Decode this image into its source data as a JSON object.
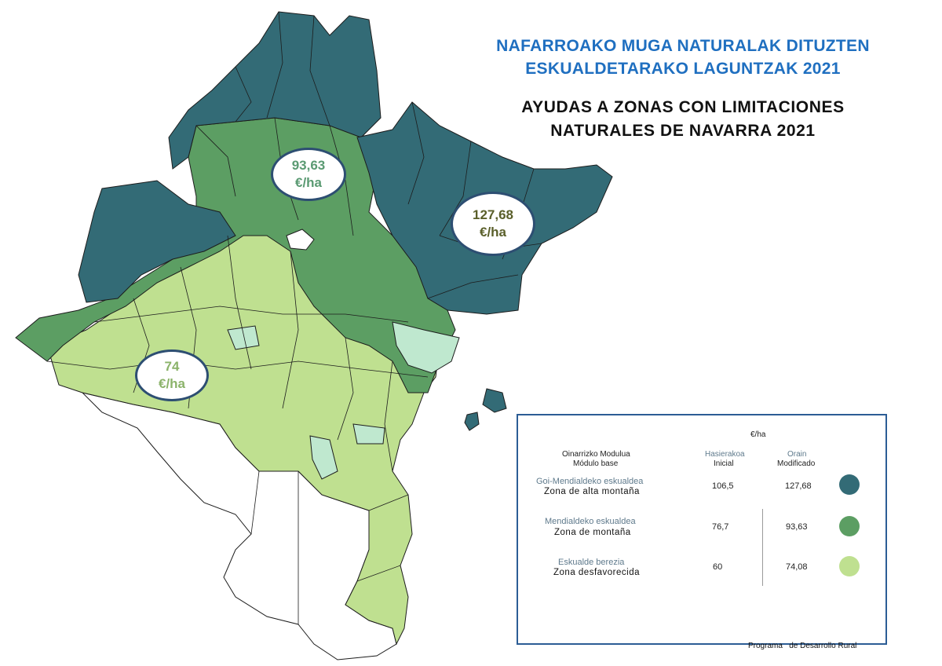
{
  "title": {
    "basque_line1": "NAFARROAKO MUGA NATURALAK DITUZTEN",
    "basque_line2": "ESKUALDETARAKO  LAGUNTZAK 2021",
    "spanish_line1": "AYUDAS A ZONAS CON LIMITACIONES",
    "spanish_line2": "NATURALES DE  NAVARRA  2021"
  },
  "bubbles": [
    {
      "value": "93,63",
      "unit": "€/ha",
      "color": "#5a9a72"
    },
    {
      "value": "127,68",
      "unit": "€/ha",
      "color": "#5a5f2a"
    },
    {
      "value": "74",
      "unit": "€/ha",
      "color": "#8bb36a"
    }
  ],
  "legend": {
    "unit_header": "€/ha",
    "module_header_eu": "Oinarrizko Modulua",
    "module_header_es": "Módulo base",
    "initial_header_eu": "Hasierakoa",
    "initial_header_es": "Inicial",
    "modified_header_eu": "Orain",
    "modified_header_es": "Modificado",
    "rows": [
      {
        "name_eu": "Goi-Mendialdeko   eskualdea",
        "name_es": "Zona de alta montaña",
        "initial": "106,5",
        "modified": "127,68",
        "color": "#336b76"
      },
      {
        "name_eu": "Mendialdeko   eskualdea",
        "name_es": "Zona de montaña",
        "initial": "76,7",
        "modified": "93,63",
        "color": "#5c9e63"
      },
      {
        "name_eu": "Eskualde  berezia",
        "name_es": "Zona desfavorecida",
        "initial": "60",
        "modified": "74,08",
        "color": "#bfe090"
      }
    ]
  },
  "map": {
    "colors": {
      "high_mountain": "#336b76",
      "mountain": "#5c9e63",
      "disadvantaged": "#bfe090",
      "special": "#bfe8cf",
      "none": "#ffffff",
      "border": "#1c1c1c"
    }
  },
  "footer": "Programa   de Desarrollo Rural"
}
